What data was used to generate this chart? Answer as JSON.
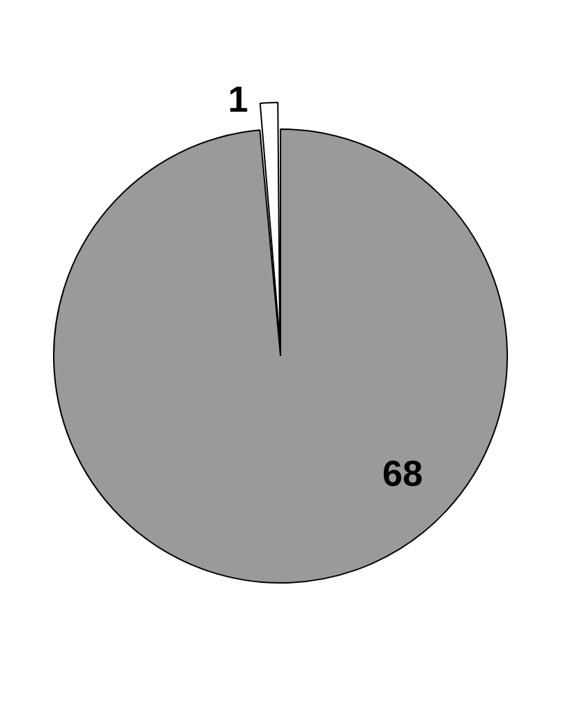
{
  "chart_data": {
    "type": "pie",
    "categories": [
      null,
      null
    ],
    "values": [
      68,
      1
    ],
    "colors": [
      "#9a9a9a",
      "#ffffff"
    ],
    "data_labels": true,
    "legend": false
  }
}
